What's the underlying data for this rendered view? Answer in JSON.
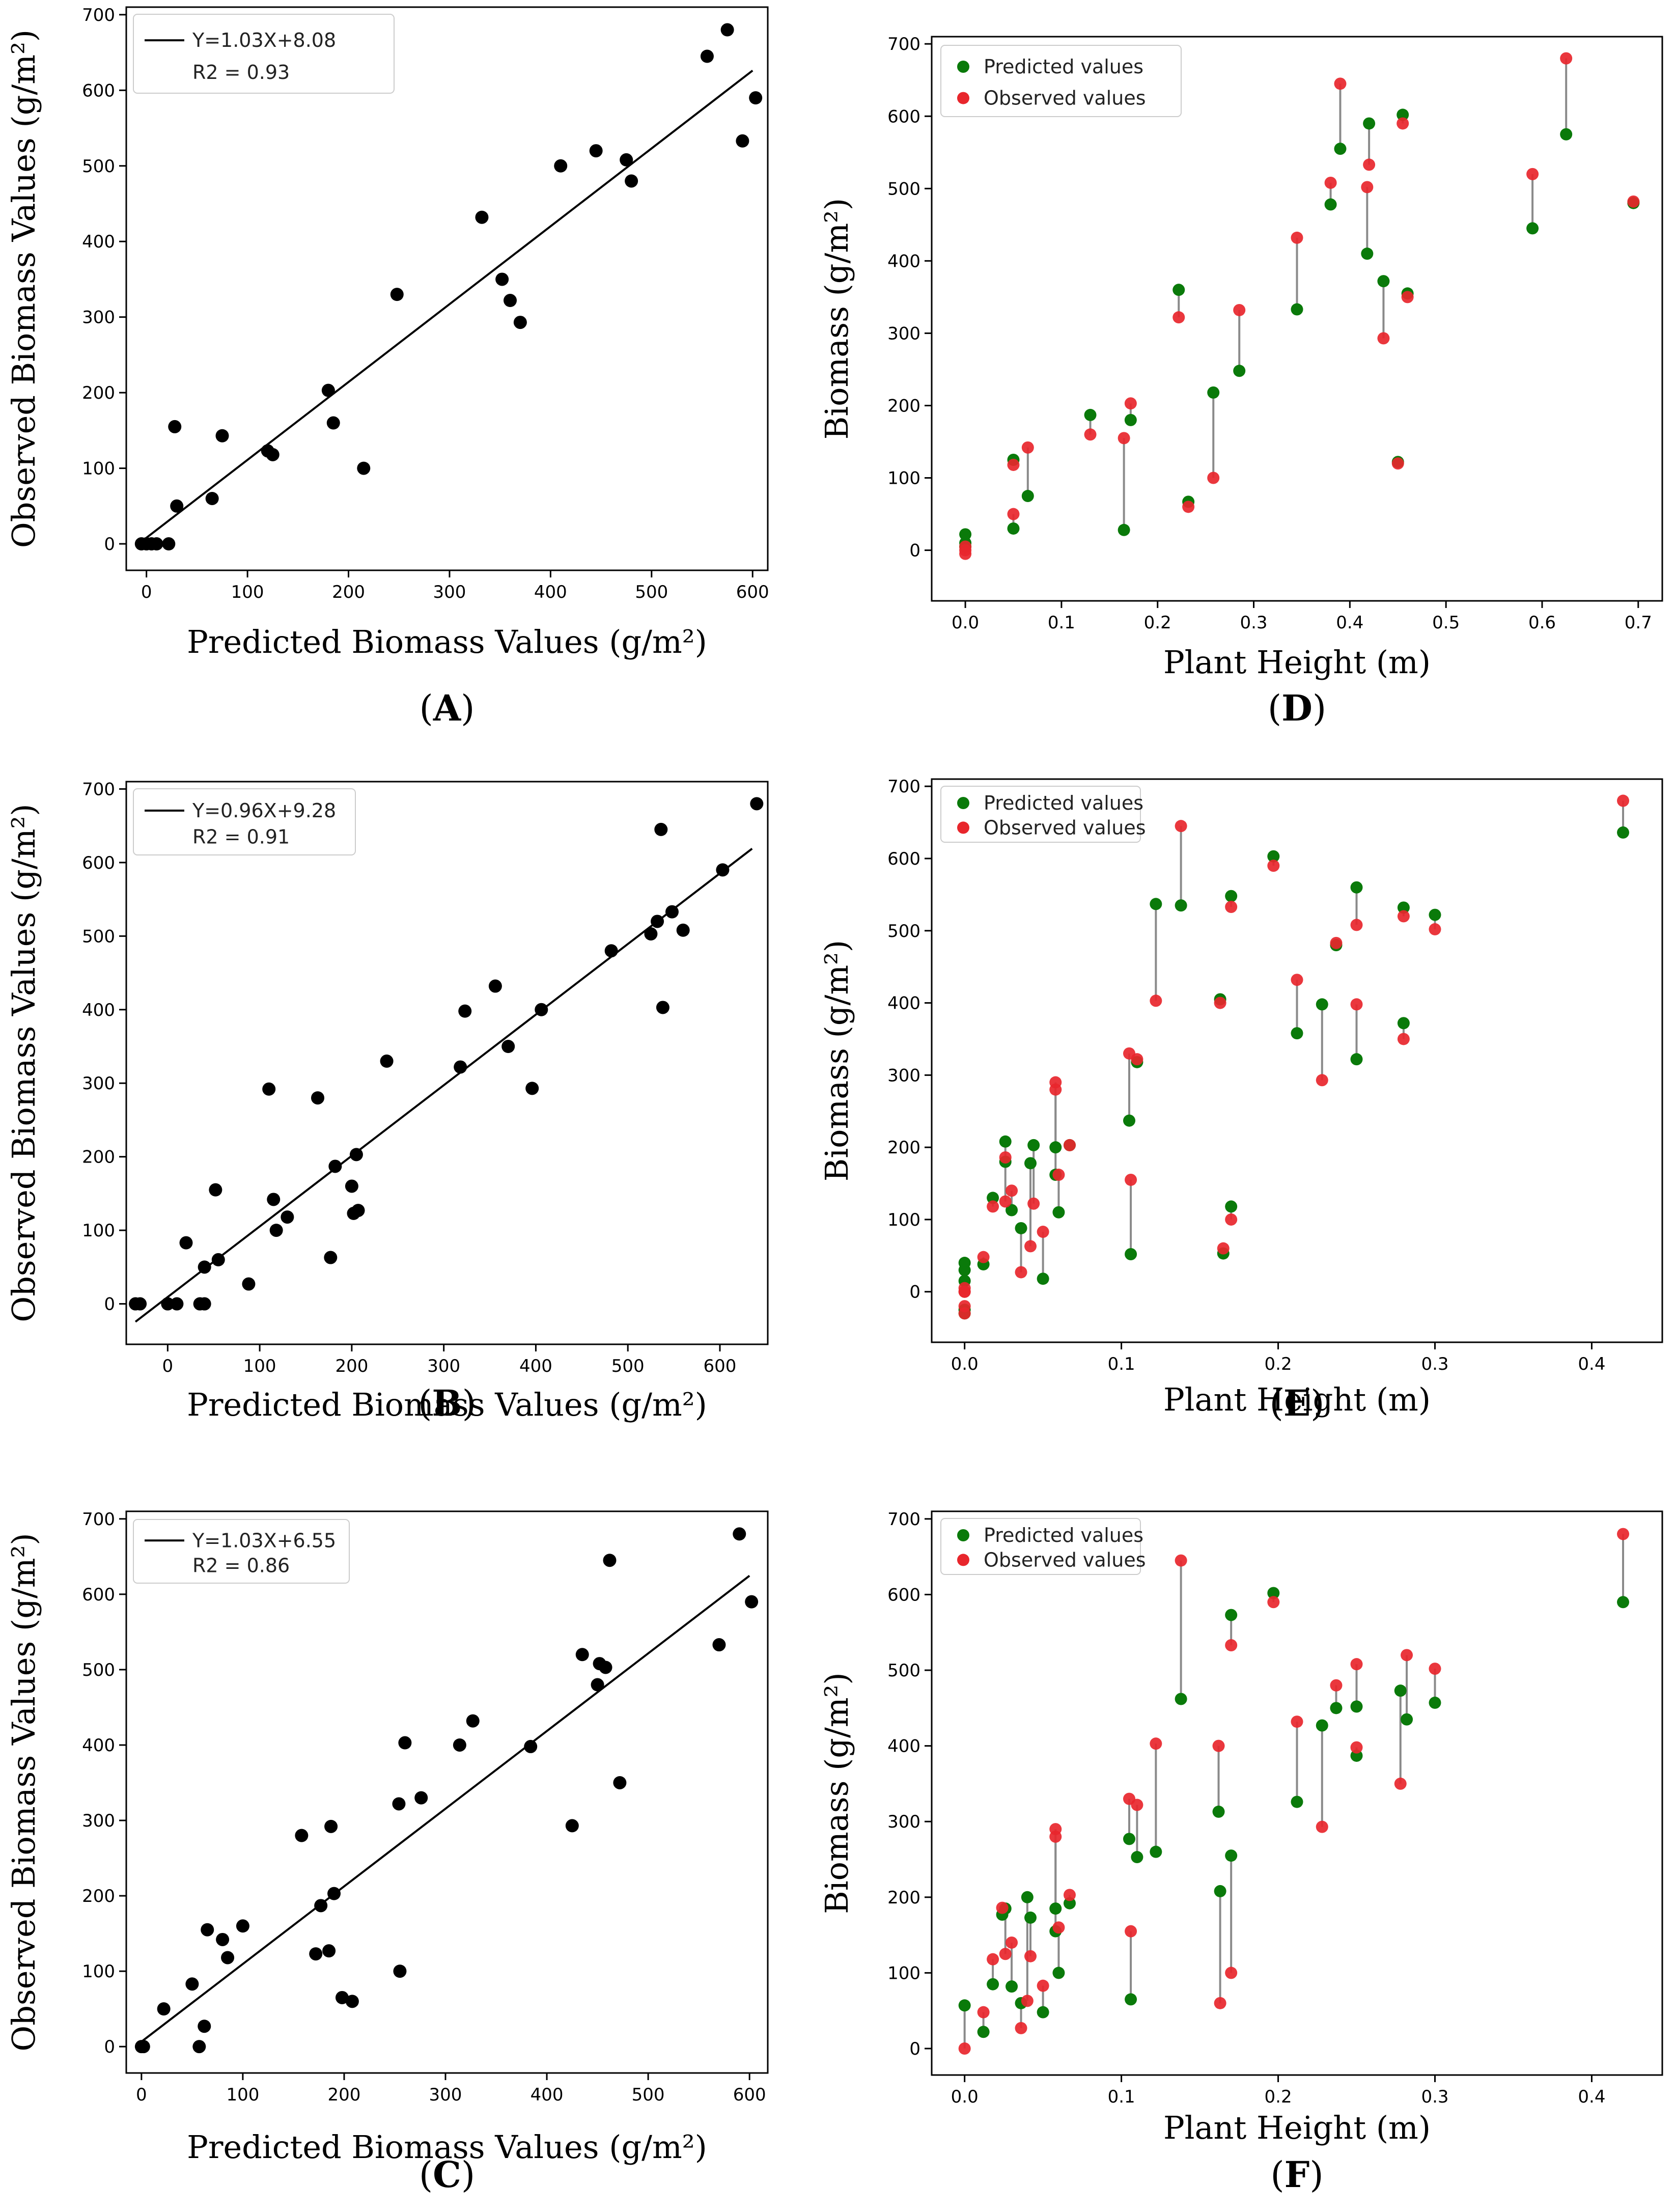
{
  "colors": {
    "scatter": "#000000",
    "predicted": "#0a7a0a",
    "observed": "#e8262c",
    "connector": "#8a8a8a",
    "fit_line": "#000000"
  },
  "chart_data": [
    {
      "id": "A",
      "type": "scatter",
      "panel_label": "A",
      "xlabel": "Predicted Biomass Values",
      "xunit": "(g/m²)",
      "ylabel": "Observed Biomass Values",
      "yunit": "(g/m²)",
      "xlim": [
        -20,
        615
      ],
      "ylim": [
        -35,
        710
      ],
      "xticks": [
        0,
        100,
        200,
        300,
        400,
        500,
        600
      ],
      "yticks": [
        0,
        100,
        200,
        300,
        400,
        500,
        600,
        700
      ],
      "fit": {
        "slope": 1.03,
        "intercept": 8.08,
        "x_range": [
          -5,
          600
        ]
      },
      "legend": {
        "line1": "Y=1.03X+8.08",
        "line2": "R2 = 0.93"
      },
      "points": [
        [
          -5,
          0
        ],
        [
          0,
          0
        ],
        [
          5,
          0
        ],
        [
          10,
          0
        ],
        [
          22,
          0
        ],
        [
          30,
          50
        ],
        [
          28,
          155
        ],
        [
          65,
          60
        ],
        [
          75,
          143
        ],
        [
          120,
          123
        ],
        [
          125,
          118
        ],
        [
          180,
          203
        ],
        [
          185,
          160
        ],
        [
          215,
          100
        ],
        [
          248,
          330
        ],
        [
          332,
          432
        ],
        [
          352,
          350
        ],
        [
          360,
          322
        ],
        [
          370,
          293
        ],
        [
          410,
          500
        ],
        [
          445,
          520
        ],
        [
          475,
          508
        ],
        [
          480,
          480
        ],
        [
          555,
          645
        ],
        [
          575,
          680
        ],
        [
          590,
          533
        ],
        [
          603,
          590
        ]
      ]
    },
    {
      "id": "B",
      "type": "scatter",
      "panel_label": "B",
      "xlabel": "Predicted Biomass Values",
      "xunit": "(g/m²)",
      "ylabel": "Observed Biomass Values",
      "yunit": "(g/m²)",
      "xlim": [
        -45,
        652
      ],
      "ylim": [
        -55,
        710
      ],
      "xticks": [
        0,
        100,
        200,
        300,
        400,
        500,
        600
      ],
      "yticks": [
        0,
        100,
        200,
        300,
        400,
        500,
        600,
        700
      ],
      "fit": {
        "slope": 0.96,
        "intercept": 9.28,
        "x_range": [
          -35,
          635
        ]
      },
      "legend": {
        "line1": "Y=0.96X+9.28",
        "line2": "R2 = 0.91"
      },
      "points": [
        [
          -35,
          0
        ],
        [
          -30,
          0
        ],
        [
          0,
          0
        ],
        [
          10,
          0
        ],
        [
          35,
          0
        ],
        [
          40,
          0
        ],
        [
          20,
          83
        ],
        [
          40,
          50
        ],
        [
          52,
          155
        ],
        [
          55,
          60
        ],
        [
          88,
          27
        ],
        [
          110,
          292
        ],
        [
          115,
          142
        ],
        [
          118,
          100
        ],
        [
          130,
          118
        ],
        [
          163,
          280
        ],
        [
          177,
          63
        ],
        [
          182,
          187
        ],
        [
          200,
          160
        ],
        [
          202,
          123
        ],
        [
          205,
          203
        ],
        [
          207,
          127
        ],
        [
          238,
          330
        ],
        [
          318,
          322
        ],
        [
          323,
          398
        ],
        [
          370,
          350
        ],
        [
          356,
          432
        ],
        [
          396,
          293
        ],
        [
          406,
          400
        ],
        [
          482,
          480
        ],
        [
          525,
          503
        ],
        [
          532,
          520
        ],
        [
          536,
          645
        ],
        [
          538,
          403
        ],
        [
          548,
          533
        ],
        [
          560,
          508
        ],
        [
          603,
          590
        ],
        [
          640,
          680
        ]
      ]
    },
    {
      "id": "C",
      "type": "scatter",
      "panel_label": "C",
      "xlabel": "Predicted Biomass Values",
      "xunit": "(g/m²)",
      "ylabel": "Observed Biomass Values",
      "yunit": "(g/m²)",
      "xlim": [
        -15,
        618
      ],
      "ylim": [
        -35,
        710
      ],
      "xticks": [
        0,
        100,
        200,
        300,
        400,
        500,
        600
      ],
      "yticks": [
        0,
        100,
        200,
        300,
        400,
        500,
        600,
        700
      ],
      "fit": {
        "slope": 1.03,
        "intercept": 6.55,
        "x_range": [
          0,
          600
        ]
      },
      "legend": {
        "line1": "Y=1.03X+6.55",
        "line2": "R2 = 0.86"
      },
      "points": [
        [
          0,
          0
        ],
        [
          2,
          0
        ],
        [
          22,
          50
        ],
        [
          50,
          83
        ],
        [
          57,
          0
        ],
        [
          62,
          27
        ],
        [
          65,
          155
        ],
        [
          80,
          142
        ],
        [
          85,
          118
        ],
        [
          100,
          160
        ],
        [
          158,
          280
        ],
        [
          172,
          123
        ],
        [
          177,
          187
        ],
        [
          185,
          127
        ],
        [
          187,
          292
        ],
        [
          190,
          203
        ],
        [
          198,
          65
        ],
        [
          208,
          60
        ],
        [
          254,
          322
        ],
        [
          255,
          100
        ],
        [
          260,
          403
        ],
        [
          276,
          330
        ],
        [
          314,
          400
        ],
        [
          327,
          432
        ],
        [
          384,
          398
        ],
        [
          425,
          293
        ],
        [
          435,
          520
        ],
        [
          450,
          480
        ],
        [
          452,
          508
        ],
        [
          458,
          503
        ],
        [
          462,
          645
        ],
        [
          472,
          350
        ],
        [
          570,
          533
        ],
        [
          590,
          680
        ],
        [
          602,
          590
        ]
      ]
    },
    {
      "id": "D",
      "type": "scatter",
      "panel_label": "D",
      "xlabel": "Plant Height (m)",
      "ylabel": "Biomass",
      "yunit": "(g/m²)",
      "xlim": [
        -0.035,
        0.725
      ],
      "ylim": [
        -70,
        710
      ],
      "xticks": [
        0.0,
        0.1,
        0.2,
        0.3,
        0.4,
        0.5,
        0.6,
        0.7
      ],
      "yticks": [
        0,
        100,
        200,
        300,
        400,
        500,
        600,
        700
      ],
      "legend": {
        "pred": "Predicted values",
        "obs": "Observed values"
      },
      "pairs": [
        [
          0.0,
          22,
          0
        ],
        [
          0.0,
          10,
          -5
        ],
        [
          0.0,
          5,
          5
        ],
        [
          0.05,
          125,
          118
        ],
        [
          0.05,
          30,
          50
        ],
        [
          0.065,
          75,
          142
        ],
        [
          0.13,
          187,
          160
        ],
        [
          0.165,
          28,
          155
        ],
        [
          0.172,
          180,
          203
        ],
        [
          0.222,
          360,
          322
        ],
        [
          0.232,
          67,
          60
        ],
        [
          0.258,
          218,
          100
        ],
        [
          0.285,
          248,
          332
        ],
        [
          0.345,
          333,
          432
        ],
        [
          0.38,
          478,
          508
        ],
        [
          0.39,
          555,
          645
        ],
        [
          0.418,
          410,
          502
        ],
        [
          0.42,
          590,
          533
        ],
        [
          0.435,
          372,
          293
        ],
        [
          0.45,
          122,
          120
        ],
        [
          0.455,
          602,
          590
        ],
        [
          0.46,
          355,
          350
        ],
        [
          0.59,
          445,
          520
        ],
        [
          0.625,
          575,
          680
        ],
        [
          0.695,
          480,
          482
        ]
      ]
    },
    {
      "id": "E",
      "type": "scatter",
      "panel_label": "E",
      "xlabel": "Plant Height (m)",
      "ylabel": "Biomass",
      "yunit": "(g/m²)",
      "xlim": [
        -0.021,
        0.445
      ],
      "ylim": [
        -70,
        710
      ],
      "xticks": [
        0.0,
        0.1,
        0.2,
        0.3,
        0.4
      ],
      "yticks": [
        0,
        100,
        200,
        300,
        400,
        500,
        600,
        700
      ],
      "legend": {
        "pred": "Predicted values",
        "obs": "Observed values"
      },
      "pairs": [
        [
          0.0,
          40,
          5
        ],
        [
          0.0,
          30,
          0
        ],
        [
          0.0,
          15,
          0
        ],
        [
          0.0,
          -25,
          -20
        ],
        [
          0.0,
          -30,
          -30
        ],
        [
          0.012,
          38,
          48
        ],
        [
          0.018,
          130,
          118
        ],
        [
          0.026,
          208,
          186
        ],
        [
          0.026,
          180,
          125
        ],
        [
          0.03,
          113,
          140
        ],
        [
          0.036,
          88,
          27
        ],
        [
          0.042,
          178,
          63
        ],
        [
          0.044,
          203,
          122
        ],
        [
          0.05,
          18,
          83
        ],
        [
          0.058,
          200,
          290
        ],
        [
          0.058,
          162,
          280
        ],
        [
          0.06,
          110,
          162
        ],
        [
          0.067,
          203,
          203
        ],
        [
          0.105,
          237,
          330
        ],
        [
          0.106,
          52,
          155
        ],
        [
          0.11,
          318,
          322
        ],
        [
          0.122,
          537,
          403
        ],
        [
          0.138,
          535,
          645
        ],
        [
          0.163,
          405,
          400
        ],
        [
          0.165,
          53,
          60
        ],
        [
          0.17,
          548,
          533
        ],
        [
          0.17,
          118,
          100
        ],
        [
          0.197,
          603,
          590
        ],
        [
          0.212,
          358,
          432
        ],
        [
          0.228,
          398,
          293
        ],
        [
          0.237,
          480,
          483
        ],
        [
          0.25,
          560,
          508
        ],
        [
          0.25,
          322,
          398
        ],
        [
          0.28,
          532,
          520
        ],
        [
          0.28,
          372,
          350
        ],
        [
          0.3,
          522,
          502
        ],
        [
          0.42,
          636,
          680
        ]
      ]
    },
    {
      "id": "F",
      "type": "scatter",
      "panel_label": "F",
      "xlabel": "Plant Height (m)",
      "ylabel": "Biomass",
      "yunit": "(g/m²)",
      "xlim": [
        -0.021,
        0.445
      ],
      "ylim": [
        -35,
        710
      ],
      "xticks": [
        0.0,
        0.1,
        0.2,
        0.3,
        0.4
      ],
      "yticks": [
        0,
        100,
        200,
        300,
        400,
        500,
        600,
        700
      ],
      "legend": {
        "pred": "Predicted values",
        "obs": "Observed values"
      },
      "pairs": [
        [
          0.0,
          57,
          0
        ],
        [
          0.012,
          22,
          48
        ],
        [
          0.018,
          85,
          118
        ],
        [
          0.024,
          177,
          186
        ],
        [
          0.026,
          185,
          125
        ],
        [
          0.03,
          82,
          140
        ],
        [
          0.036,
          60,
          27
        ],
        [
          0.04,
          200,
          63
        ],
        [
          0.042,
          173,
          122
        ],
        [
          0.05,
          48,
          83
        ],
        [
          0.058,
          185,
          290
        ],
        [
          0.058,
          155,
          280
        ],
        [
          0.06,
          100,
          160
        ],
        [
          0.067,
          192,
          203
        ],
        [
          0.105,
          277,
          330
        ],
        [
          0.106,
          65,
          155
        ],
        [
          0.11,
          253,
          322
        ],
        [
          0.122,
          260,
          403
        ],
        [
          0.138,
          462,
          645
        ],
        [
          0.162,
          313,
          400
        ],
        [
          0.163,
          208,
          60
        ],
        [
          0.17,
          573,
          533
        ],
        [
          0.17,
          255,
          100
        ],
        [
          0.197,
          602,
          590
        ],
        [
          0.212,
          326,
          432
        ],
        [
          0.228,
          427,
          293
        ],
        [
          0.237,
          450,
          480
        ],
        [
          0.25,
          452,
          508
        ],
        [
          0.25,
          387,
          398
        ],
        [
          0.278,
          473,
          350
        ],
        [
          0.282,
          435,
          520
        ],
        [
          0.3,
          457,
          502
        ],
        [
          0.42,
          590,
          680
        ]
      ]
    }
  ]
}
